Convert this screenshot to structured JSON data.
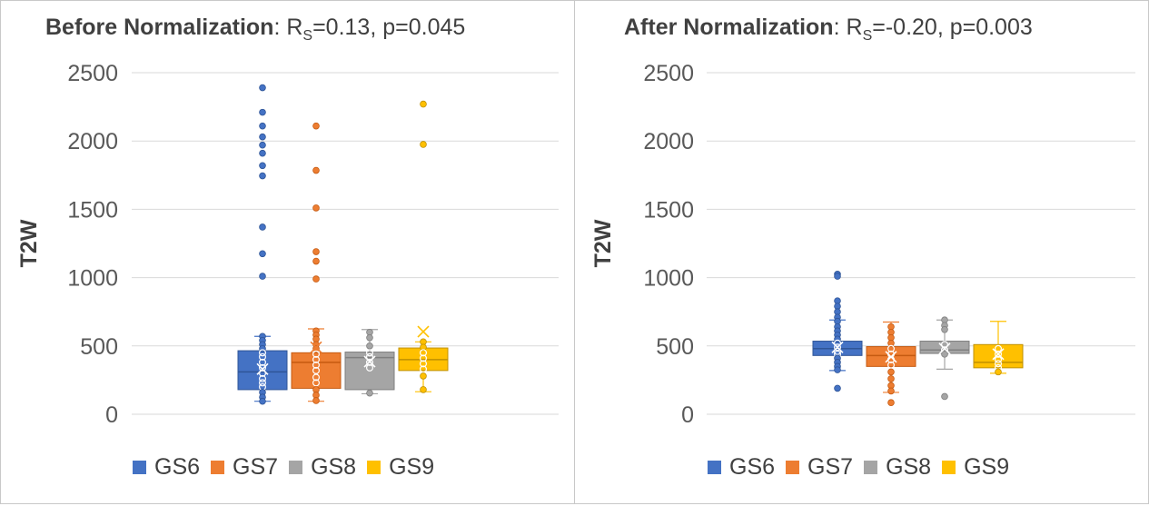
{
  "colors": {
    "GS6": "#4472c4",
    "GS7": "#ed7d31",
    "GS8": "#a5a5a5",
    "GS9": "#ffc000"
  },
  "chart_data": [
    {
      "type": "boxplot",
      "title_bold": "Before Normalization",
      "title_sep": ":",
      "title_r": "R",
      "title_r_sub": "S",
      "title_stats": "=0.13, p=0.045",
      "ylabel": "T2W",
      "ylim": [
        0,
        2500
      ],
      "yticks": [
        "0",
        "500",
        "1000",
        "1500",
        "2000",
        "2500"
      ],
      "grid": true,
      "legend": [
        "GS6",
        "GS7",
        "GS8",
        "GS9"
      ],
      "series": [
        {
          "name": "GS6",
          "q1": 180,
          "median": 310,
          "q3": 465,
          "min": 95,
          "max": 570,
          "mean": 330,
          "points": [
            2390,
            2210,
            2110,
            2030,
            1970,
            1910,
            1820,
            1745,
            1370,
            1175,
            1010,
            570,
            540,
            510,
            480,
            450,
            420,
            380,
            340,
            300,
            260,
            230,
            200,
            160,
            125,
            95
          ]
        },
        {
          "name": "GS7",
          "q1": 190,
          "median": 380,
          "q3": 450,
          "min": 95,
          "max": 625,
          "mean": 490,
          "points": [
            2110,
            1785,
            1510,
            1190,
            1120,
            990,
            610,
            580,
            550,
            510,
            480,
            440,
            400,
            360,
            320,
            270,
            230,
            180,
            140,
            100
          ]
        },
        {
          "name": "GS8",
          "q1": 180,
          "median": 415,
          "q3": 455,
          "min": 150,
          "max": 620,
          "mean": 385,
          "points": [
            600,
            560,
            500,
            450,
            420,
            380,
            340,
            155
          ]
        },
        {
          "name": "GS9",
          "q1": 320,
          "median": 400,
          "q3": 485,
          "min": 165,
          "max": 530,
          "mean": 605,
          "points": [
            2270,
            1975,
            530,
            490,
            450,
            410,
            370,
            330,
            280,
            180
          ]
        }
      ]
    },
    {
      "type": "boxplot",
      "title_bold": "After Normalization",
      "title_sep": ":",
      "title_r": "R",
      "title_r_sub": "S",
      "title_stats": "=-0.20, p=0.003",
      "ylabel": "T2W",
      "ylim": [
        0,
        2500
      ],
      "yticks": [
        "0",
        "500",
        "1000",
        "1500",
        "2000",
        "2500"
      ],
      "grid": true,
      "legend": [
        "GS6",
        "GS7",
        "GS8",
        "GS9"
      ],
      "series": [
        {
          "name": "GS6",
          "q1": 430,
          "median": 480,
          "q3": 535,
          "min": 320,
          "max": 690,
          "mean": 490,
          "points": [
            1025,
            1010,
            830,
            790,
            750,
            710,
            680,
            640,
            610,
            580,
            550,
            520,
            490,
            460,
            440,
            410,
            380,
            350,
            325,
            190
          ]
        },
        {
          "name": "GS7",
          "q1": 350,
          "median": 430,
          "q3": 495,
          "min": 160,
          "max": 675,
          "mean": 420,
          "points": [
            640,
            600,
            560,
            520,
            480,
            440,
            400,
            360,
            310,
            260,
            210,
            170,
            85
          ]
        },
        {
          "name": "GS8",
          "q1": 445,
          "median": 470,
          "q3": 535,
          "min": 330,
          "max": 690,
          "mean": 480,
          "points": [
            690,
            650,
            620,
            510,
            470,
            440,
            130
          ]
        },
        {
          "name": "GS9",
          "q1": 340,
          "median": 380,
          "q3": 510,
          "min": 300,
          "max": 680,
          "mean": 440,
          "points": [
            480,
            440,
            400,
            370,
            340,
            310
          ]
        }
      ]
    }
  ]
}
